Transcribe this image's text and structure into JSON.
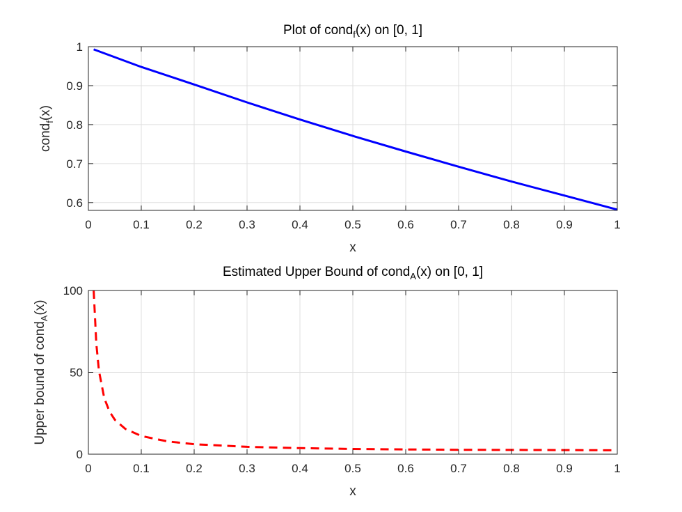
{
  "chart_data": [
    {
      "type": "line",
      "title": {
        "pre": "Plot of cond",
        "sub": "f",
        "post": "(x) on [0, 1]"
      },
      "xlabel": "x",
      "ylabel": {
        "pre": "cond",
        "sub": "f",
        "post": "(x)"
      },
      "xlim": [
        0,
        1
      ],
      "ylim": [
        0.58,
        1.0
      ],
      "xticks": [
        0,
        0.1,
        0.2,
        0.3,
        0.4,
        0.5,
        0.6,
        0.7,
        0.8,
        0.9,
        1
      ],
      "xtick_labels": [
        "0",
        "0.1",
        "0.2",
        "0.3",
        "0.4",
        "0.5",
        "0.6",
        "0.7",
        "0.8",
        "0.9",
        "1"
      ],
      "yticks": [
        0.6,
        0.7,
        0.8,
        0.9,
        1.0
      ],
      "ytick_labels": [
        "0.6",
        "0.7",
        "0.8",
        "0.9",
        "1"
      ],
      "grid": true,
      "series": [
        {
          "color": "#0000ff",
          "style": "solid",
          "x": [
            0.01,
            0.1,
            0.2,
            0.3,
            0.4,
            0.5,
            0.6,
            0.7,
            0.8,
            0.9,
            1.0
          ],
          "y": [
            0.993,
            0.948,
            0.903,
            0.857,
            0.813,
            0.771,
            0.731,
            0.692,
            0.654,
            0.618,
            0.582
          ]
        }
      ]
    },
    {
      "type": "line",
      "title": {
        "pre": "Estimated Upper Bound of cond",
        "sub": "A",
        "post": "(x) on [0, 1]"
      },
      "xlabel": "x",
      "ylabel": {
        "pre": "Upper bound of cond",
        "sub": "A",
        "post": "(x)"
      },
      "xlim": [
        0,
        1
      ],
      "ylim": [
        0,
        100
      ],
      "xticks": [
        0,
        0.1,
        0.2,
        0.3,
        0.4,
        0.5,
        0.6,
        0.7,
        0.8,
        0.9,
        1
      ],
      "xtick_labels": [
        "0",
        "0.1",
        "0.2",
        "0.3",
        "0.4",
        "0.5",
        "0.6",
        "0.7",
        "0.8",
        "0.9",
        "1"
      ],
      "yticks": [
        0,
        50,
        100
      ],
      "ytick_labels": [
        "0",
        "50",
        "100"
      ],
      "grid": true,
      "series": [
        {
          "color": "#ff0000",
          "style": "dashed",
          "x": [
            0.01,
            0.015,
            0.02,
            0.03,
            0.04,
            0.05,
            0.07,
            0.1,
            0.15,
            0.2,
            0.3,
            0.4,
            0.5,
            0.6,
            0.7,
            0.8,
            0.9,
            1.0
          ],
          "y": [
            100,
            67.5,
            50.9,
            34.3,
            26.0,
            21.0,
            15.4,
            11.1,
            7.8,
            6.1,
            4.5,
            3.7,
            3.2,
            2.9,
            2.7,
            2.6,
            2.5,
            2.4
          ]
        }
      ]
    }
  ]
}
